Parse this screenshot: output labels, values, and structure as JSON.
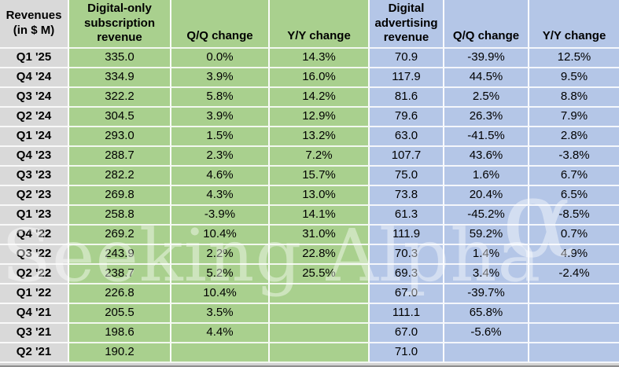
{
  "watermark": {
    "text": "Seeking Alpha",
    "symbol": "α"
  },
  "colors": {
    "row_header_grey": "#d9d9d9",
    "subscription_green": "#a9d08e",
    "advertising_blue": "#b4c6e7",
    "gridline": "#ffffff",
    "text": "#000000"
  },
  "table": {
    "columns": [
      {
        "label": "Revenues\n(in $ M)"
      },
      {
        "label": "Digital-only subscription revenue"
      },
      {
        "label": "Q/Q change"
      },
      {
        "label": "Y/Y change"
      },
      {
        "label": "Digital advertising revenue"
      },
      {
        "label": "Q/Q change"
      },
      {
        "label": "Y/Y change"
      }
    ],
    "rows": [
      [
        "Q1 '25",
        "335.0",
        "0.0%",
        "14.3%",
        "70.9",
        "-39.9%",
        "12.5%"
      ],
      [
        "Q4 '24",
        "334.9",
        "3.9%",
        "16.0%",
        "117.9",
        "44.5%",
        "9.5%"
      ],
      [
        "Q3 '24",
        "322.2",
        "5.8%",
        "14.2%",
        "81.6",
        "2.5%",
        "8.8%"
      ],
      [
        "Q2 '24",
        "304.5",
        "3.9%",
        "12.9%",
        "79.6",
        "26.3%",
        "7.9%"
      ],
      [
        "Q1 '24",
        "293.0",
        "1.5%",
        "13.2%",
        "63.0",
        "-41.5%",
        "2.8%"
      ],
      [
        "Q4 '23",
        "288.7",
        "2.3%",
        "7.2%",
        "107.7",
        "43.6%",
        "-3.8%"
      ],
      [
        "Q3 '23",
        "282.2",
        "4.6%",
        "15.7%",
        "75.0",
        "1.6%",
        "6.7%"
      ],
      [
        "Q2 '23",
        "269.8",
        "4.3%",
        "13.0%",
        "73.8",
        "20.4%",
        "6.5%"
      ],
      [
        "Q1 '23",
        "258.8",
        "-3.9%",
        "14.1%",
        "61.3",
        "-45.2%",
        "-8.5%"
      ],
      [
        "Q4 '22",
        "269.2",
        "10.4%",
        "31.0%",
        "111.9",
        "59.2%",
        "0.7%"
      ],
      [
        "Q3 '22",
        "243.9",
        "2.2%",
        "22.8%",
        "70.3",
        "1.4%",
        "4.9%"
      ],
      [
        "Q2 '22",
        "238.7",
        "5.2%",
        "25.5%",
        "69.3",
        "3.4%",
        "-2.4%"
      ],
      [
        "Q1 '22",
        "226.8",
        "10.4%",
        "",
        "67.0",
        "-39.7%",
        ""
      ],
      [
        "Q4 '21",
        "205.5",
        "3.5%",
        "",
        "111.1",
        "65.8%",
        ""
      ],
      [
        "Q3 '21",
        "198.6",
        "4.4%",
        "",
        "67.0",
        "-5.6%",
        ""
      ],
      [
        "Q2 '21",
        "190.2",
        "",
        "",
        "71.0",
        "",
        ""
      ]
    ]
  }
}
